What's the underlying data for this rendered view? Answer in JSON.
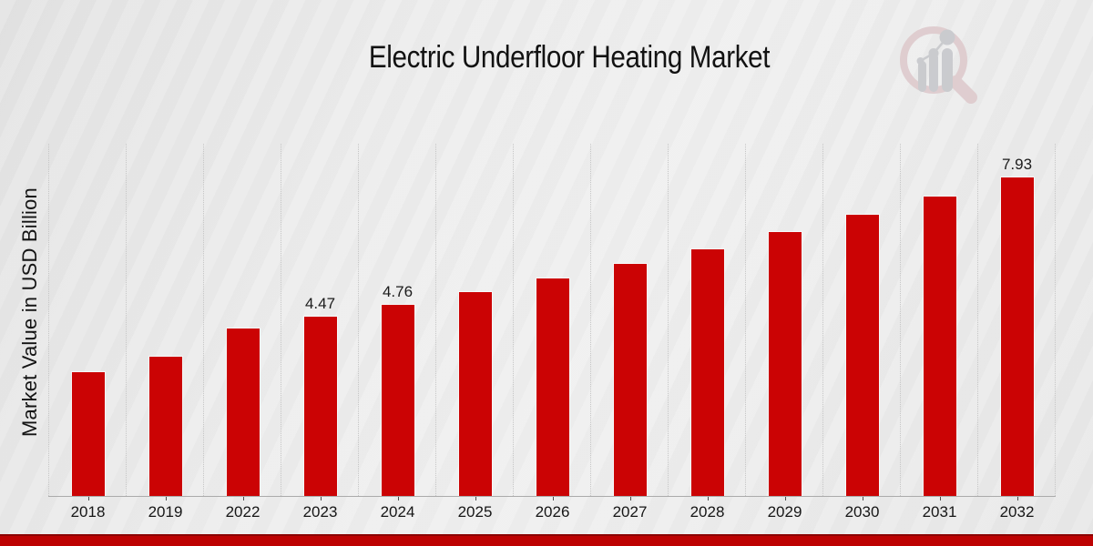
{
  "page": {
    "title": "Electric Underfloor Heating Market"
  },
  "chart_data": {
    "type": "bar",
    "title": "Electric Underfloor Heating Market",
    "xlabel": "",
    "ylabel": "Market Value in USD Billion",
    "categories": [
      "2018",
      "2019",
      "2022",
      "2023",
      "2024",
      "2025",
      "2026",
      "2027",
      "2028",
      "2029",
      "2030",
      "2031",
      "2032"
    ],
    "values": [
      3.08,
      3.47,
      4.18,
      4.47,
      4.76,
      5.07,
      5.42,
      5.78,
      6.15,
      6.57,
      7.0,
      7.45,
      7.93
    ],
    "data_labels": [
      "",
      "",
      "",
      "4.47",
      "4.76",
      "",
      "",
      "",
      "",
      "",
      "",
      "",
      "7.93"
    ],
    "bar_color": "#cb0304",
    "ylim": [
      0,
      8.77
    ],
    "grid": "vertical-dotted",
    "legend": false
  },
  "watermark": {
    "icon": "magnifier-bar-chart-logo",
    "ring_color": "#decacd",
    "bars_color": "#c7c8cc"
  },
  "footer": {
    "accent_color": "#bd0202"
  }
}
